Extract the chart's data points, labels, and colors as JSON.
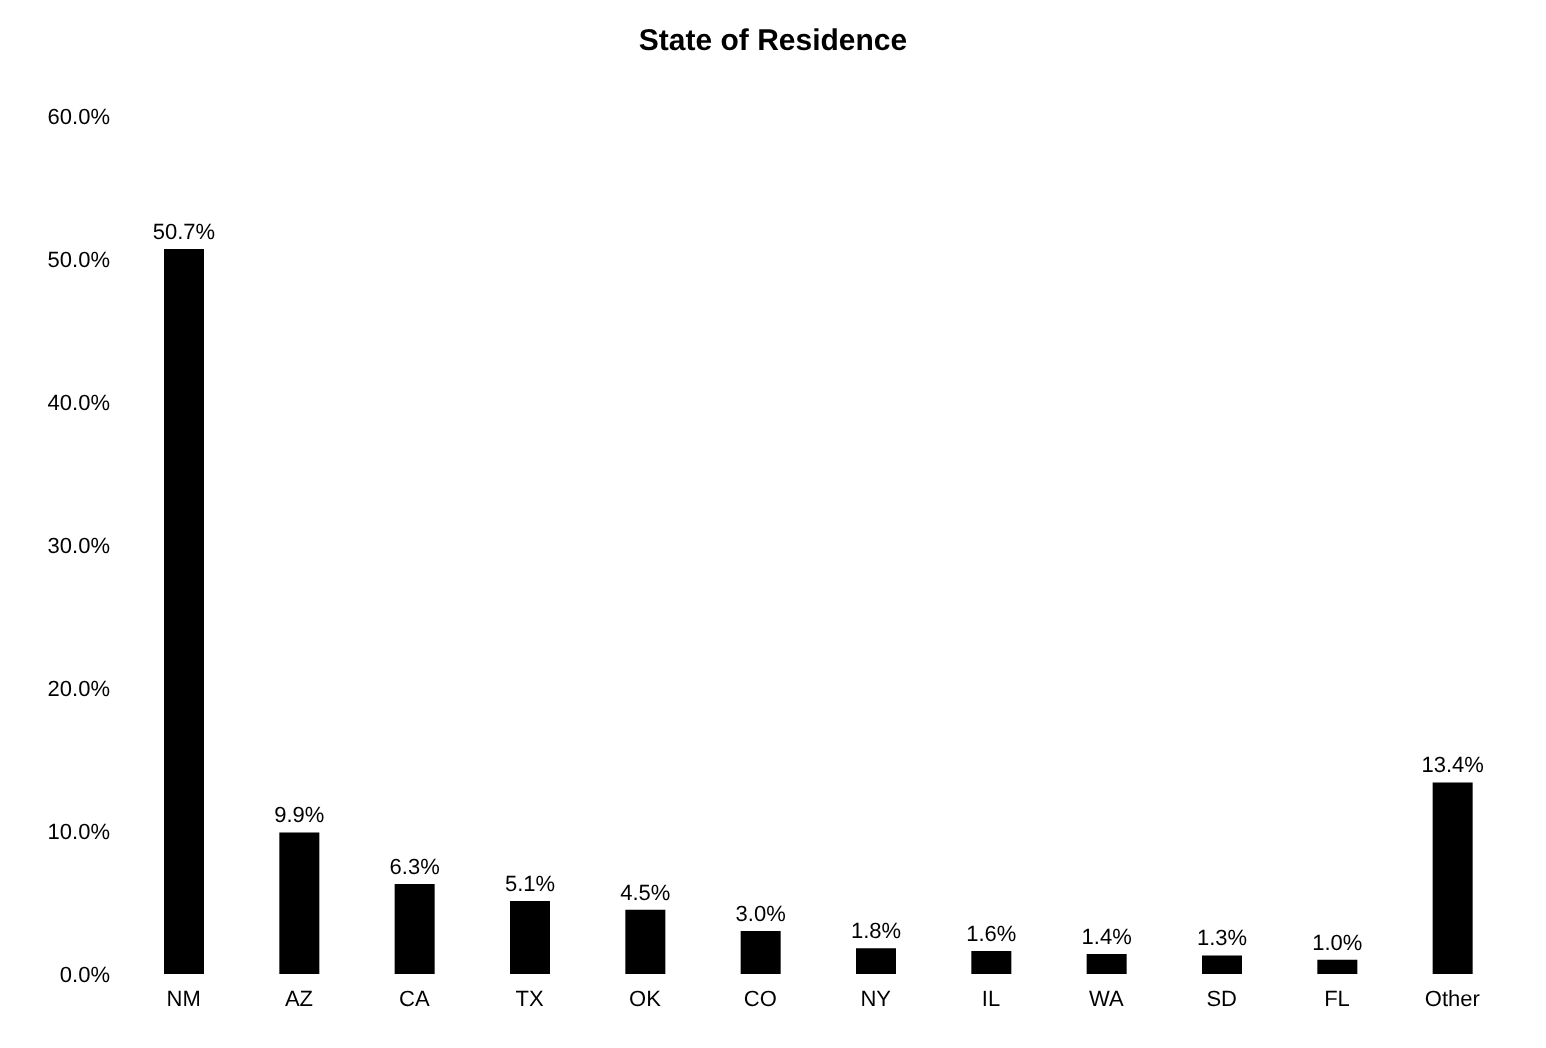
{
  "chart_data": {
    "type": "bar",
    "title": "State of Residence",
    "categories": [
      "NM",
      "AZ",
      "CA",
      "TX",
      "OK",
      "CO",
      "NY",
      "IL",
      "WA",
      "SD",
      "FL",
      "Other"
    ],
    "values": [
      50.7,
      9.9,
      6.3,
      5.1,
      4.5,
      3.0,
      1.8,
      1.6,
      1.4,
      1.3,
      1.0,
      13.4
    ],
    "value_labels": [
      "50.7%",
      "9.9%",
      "6.3%",
      "5.1%",
      "4.5%",
      "3.0%",
      "1.8%",
      "1.6%",
      "1.4%",
      "1.3%",
      "1.0%",
      "13.4%"
    ],
    "color": "#000000",
    "ylim": [
      0,
      60
    ],
    "yticks": [
      {
        "value": 0,
        "label": "0.0%"
      },
      {
        "value": 10,
        "label": "10.0%"
      },
      {
        "value": 20,
        "label": "20.0%"
      },
      {
        "value": 30,
        "label": "30.0%"
      },
      {
        "value": 40,
        "label": "40.0%"
      },
      {
        "value": 50,
        "label": "50.0%"
      },
      {
        "value": 60,
        "label": "60.0%"
      }
    ],
    "grid": false,
    "legend": false
  }
}
